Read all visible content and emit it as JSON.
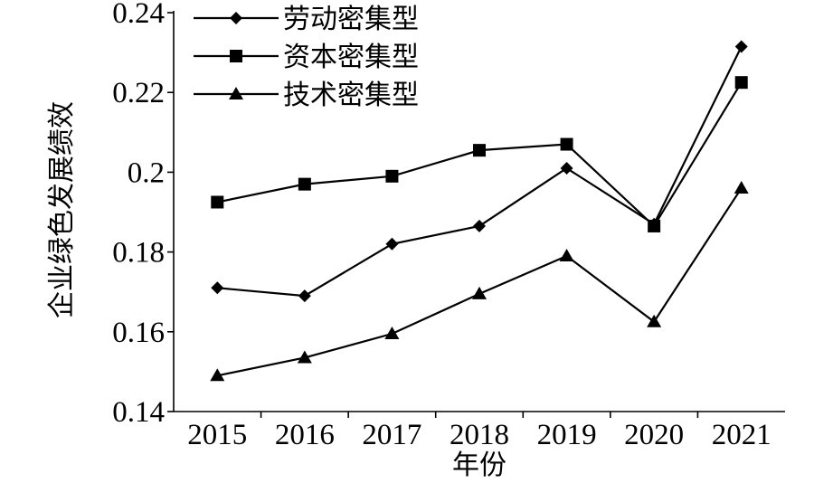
{
  "chart_data": {
    "type": "line",
    "title": "",
    "xlabel": "年份",
    "ylabel": "企业绿色发展绩效",
    "categories": [
      "2015",
      "2016",
      "2017",
      "2018",
      "2019",
      "2020",
      "2021"
    ],
    "ylim": [
      0.14,
      0.24
    ],
    "yticks": [
      0.14,
      0.16,
      0.18,
      0.2,
      0.22,
      0.24
    ],
    "ytick_labels": [
      "0.14",
      "0.16",
      "0.18",
      "0.2",
      "0.22",
      "0.24"
    ],
    "grid": false,
    "legend_position": "top-left",
    "series": [
      {
        "name": "劳动密集型",
        "marker": "diamond",
        "values": [
          0.171,
          0.169,
          0.182,
          0.1865,
          0.201,
          0.187,
          0.2315
        ]
      },
      {
        "name": "资本密集型",
        "marker": "square",
        "values": [
          0.1925,
          0.197,
          0.199,
          0.2055,
          0.207,
          0.1865,
          0.2225
        ]
      },
      {
        "name": "技术密集型",
        "marker": "triangle",
        "values": [
          0.149,
          0.1535,
          0.1595,
          0.1695,
          0.179,
          0.1625,
          0.196
        ]
      }
    ]
  }
}
